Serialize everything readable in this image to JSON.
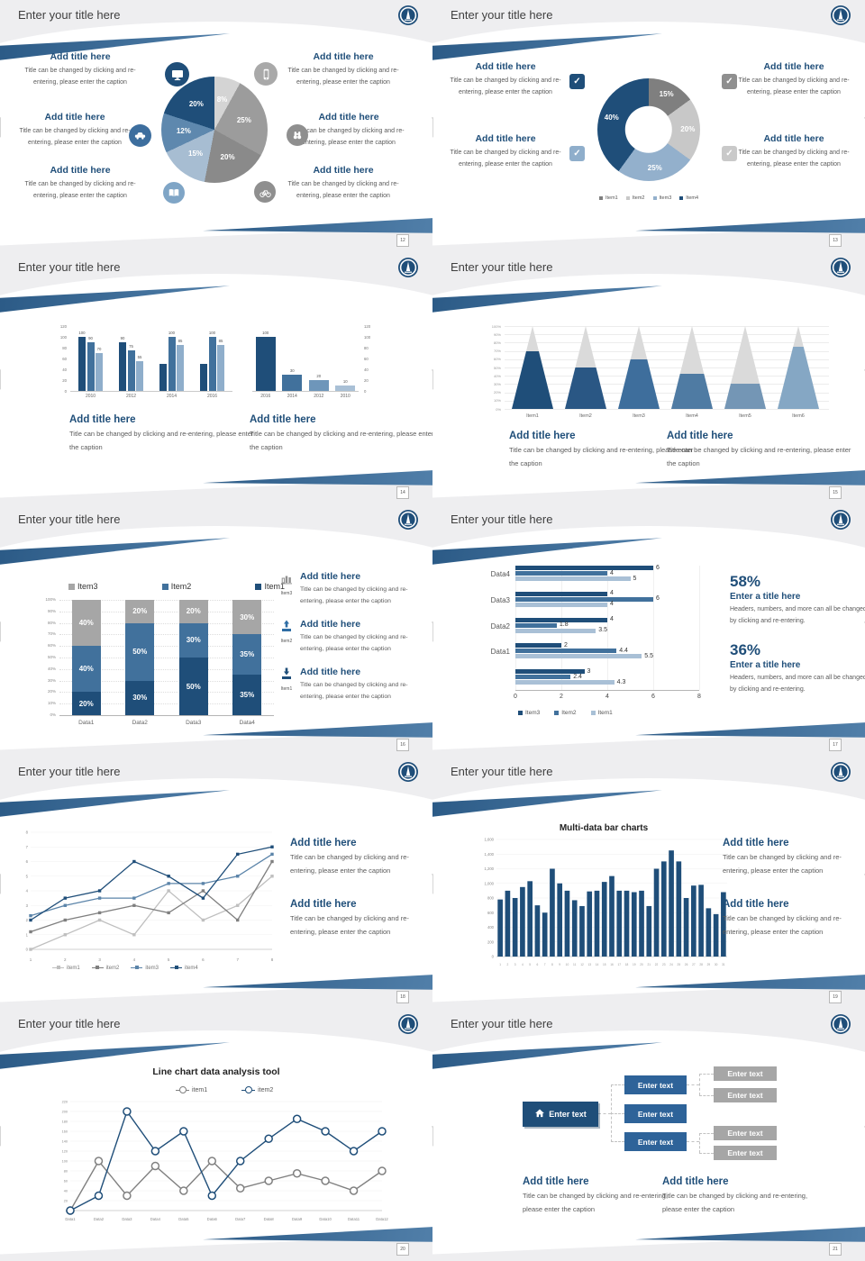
{
  "common": {
    "slide_title": "Enter your title here",
    "add_title": "Add title here",
    "caption": "Title can be changed by clicking and re-entering, please enter the caption",
    "stat_caption": "Headers, numbers, and more can all be changed by clicking and re-entering.",
    "enter_title": "Enter a title here",
    "accent_navy": "#1F4E79",
    "accent_steel": "#41719C"
  },
  "slides": {
    "s12": {
      "page": "12",
      "chart_data": {
        "type": "pie",
        "segments": [
          {
            "v": 8,
            "c": "#D4D4D4"
          },
          {
            "v": 25,
            "c": "#9C9C9C"
          },
          {
            "v": 20,
            "c": "#8A8A8A"
          },
          {
            "v": 15,
            "c": "#A7BDD2"
          },
          {
            "v": 12,
            "c": "#5E88AE"
          },
          {
            "v": 20,
            "c": "#1F4E79"
          }
        ]
      }
    },
    "s13": {
      "page": "13",
      "chart_data": {
        "type": "pie",
        "donut": true,
        "segments": [
          {
            "v": 15,
            "c": "#7F7F7F"
          },
          {
            "v": 20,
            "c": "#C8C8C8"
          },
          {
            "v": 25,
            "c": "#93B0CC"
          },
          {
            "v": 40,
            "c": "#1F4E79"
          }
        ],
        "legend": [
          {
            "label": "Item1",
            "c": "#7F7F7F"
          },
          {
            "label": "Item2",
            "c": "#C8C8C8"
          },
          {
            "label": "Item3",
            "c": "#93B0CC"
          },
          {
            "label": "Item4",
            "c": "#1F4E79"
          }
        ]
      }
    },
    "s14": {
      "page": "14",
      "left_chart": {
        "type": "bar",
        "categories": [
          "2010",
          "2012",
          "2014",
          "2016"
        ],
        "groups": [
          [
            100,
            90,
            70
          ],
          [
            90,
            75,
            55
          ],
          [
            50,
            100,
            85
          ],
          [
            50,
            100,
            85
          ]
        ],
        "labels": [
          [
            "100",
            "90",
            "70"
          ],
          [
            "90",
            "75",
            "55"
          ],
          [
            null,
            "100",
            "85"
          ],
          [
            null,
            "100",
            "85"
          ]
        ],
        "colors": [
          "#1F4E79",
          "#41719C",
          "#8FAECB"
        ],
        "yticks": [
          0,
          20,
          40,
          60,
          80,
          100,
          120
        ],
        "ylim": [
          0,
          120
        ]
      },
      "right_chart": {
        "type": "bar",
        "categories": [
          "2016",
          "2014",
          "2012",
          "2010"
        ],
        "groups": [
          [
            100
          ],
          [
            30
          ],
          [
            20
          ],
          [
            10
          ]
        ],
        "labels": [
          [
            "100"
          ],
          [
            "30"
          ],
          [
            "20"
          ],
          [
            "10"
          ]
        ],
        "colors2d": [
          [
            "#1F4E79"
          ],
          [
            "#41719C"
          ],
          [
            "#6E96BA"
          ],
          [
            "#A9C0D6"
          ]
        ],
        "yticks": [
          0,
          20,
          40,
          60,
          80,
          100,
          120
        ],
        "ylim": [
          0,
          120
        ]
      }
    },
    "s15": {
      "page": "15",
      "chart_data": {
        "type": "bar",
        "style": "pyramid",
        "categories": [
          "Item1",
          "Item2",
          "Item3",
          "Item4",
          "Item5",
          "Item6"
        ],
        "values": [
          70,
          50,
          60,
          42,
          30,
          75
        ],
        "colors": [
          "#1F4E79",
          "#2A5784",
          "#3E6E9C",
          "#4F7BA3",
          "#7496B5",
          "#85A7C4"
        ],
        "yticks": [
          "0%",
          "10%",
          "20%",
          "30%",
          "40%",
          "50%",
          "60%",
          "70%",
          "80%",
          "90%",
          "100%"
        ]
      }
    },
    "s16": {
      "page": "16",
      "chart_data": {
        "type": "bar",
        "style": "stacked-100",
        "categories": [
          "Data1",
          "Data2",
          "Data3",
          "Data4"
        ],
        "series": [
          {
            "name": "Item1",
            "c": "#1F4E79",
            "v": [
              20,
              30,
              50,
              35
            ]
          },
          {
            "name": "Item2",
            "c": "#41719C",
            "v": [
              40,
              50,
              30,
              35
            ]
          },
          {
            "name": "Item3",
            "c": "#A6A6A6",
            "v": [
              40,
              20,
              20,
              30
            ]
          }
        ],
        "legend": [
          {
            "label": "Item3",
            "c": "#A6A6A6"
          },
          {
            "label": "Item2",
            "c": "#41719C"
          },
          {
            "label": "Item1",
            "c": "#1F4E79"
          }
        ],
        "yticks": [
          "0%",
          "10%",
          "20%",
          "30%",
          "40%",
          "50%",
          "60%",
          "70%",
          "80%",
          "90%",
          "100%"
        ]
      },
      "items": [
        {
          "label": "Item3",
          "icon": "bar-chart-icon"
        },
        {
          "label": "Item2",
          "icon": "upload-icon"
        },
        {
          "label": "Item1",
          "icon": "download-icon"
        }
      ]
    },
    "s17": {
      "page": "17",
      "chart_data": {
        "type": "bar",
        "style": "horizontal-grouped",
        "groups": [
          {
            "label": "Data4",
            "v": [
              6,
              4,
              5
            ],
            "lab": [
              "6",
              "4",
              "5"
            ]
          },
          {
            "label": "Data3",
            "v": [
              4,
              6,
              4
            ],
            "lab": [
              "4",
              "6",
              "4"
            ]
          },
          {
            "label": "Data2",
            "v": [
              4,
              1.8,
              3.5
            ],
            "lab": [
              "4",
              "1.8",
              "3.5"
            ]
          },
          {
            "label": "Data1",
            "v": [
              2,
              4.4,
              5.5
            ],
            "lab": [
              "2",
              "4.4",
              "5.5"
            ]
          },
          {
            "label": "",
            "v": [
              3,
              2.4,
              4.3
            ],
            "lab": [
              "3",
              "2.4",
              "4.3"
            ]
          }
        ],
        "colors": [
          "#1F4E79",
          "#41719C",
          "#A9C0D6"
        ],
        "xticks": [
          0,
          2,
          4,
          6,
          8
        ],
        "xlim": [
          0,
          8
        ],
        "legend": [
          {
            "label": "Item3",
            "c": "#1F4E79"
          },
          {
            "label": "Item2",
            "c": "#41719C"
          },
          {
            "label": "Item1",
            "c": "#A9C0D6"
          }
        ]
      },
      "stats": [
        {
          "pct": "58%"
        },
        {
          "pct": "36%"
        }
      ]
    },
    "s18": {
      "page": "18",
      "chart_data": {
        "type": "line",
        "x": [
          "1",
          "2",
          "3",
          "4",
          "5",
          "6",
          "7",
          "8"
        ],
        "ylim": [
          0,
          8
        ],
        "series": [
          {
            "name": "item1",
            "c": "#BFBFBF",
            "v": [
              0,
              1,
              2,
              1,
              4,
              2,
              3,
              5
            ]
          },
          {
            "name": "item2",
            "c": "#7F7F7F",
            "v": [
              1.2,
              2,
              2.5,
              3,
              2.5,
              4,
              2,
              6
            ]
          },
          {
            "name": "item3",
            "c": "#5B84A9",
            "v": [
              2.3,
              3,
              3.5,
              3.5,
              4.5,
              4.5,
              5,
              6.5
            ]
          },
          {
            "name": "item4",
            "c": "#1F4E79",
            "v": [
              2,
              3.5,
              4,
              6,
              5,
              3.5,
              6.5,
              7
            ]
          }
        ]
      }
    },
    "s19": {
      "page": "19",
      "chart_title": "Multi-data bar charts",
      "chart_data": {
        "type": "bar",
        "color": "#1F4E79",
        "xlabels": [
          "1",
          "2",
          "3",
          "4",
          "5",
          "6",
          "7",
          "8",
          "9",
          "10",
          "11",
          "12",
          "13",
          "14",
          "15",
          "16",
          "17",
          "18",
          "19",
          "20",
          "21",
          "22",
          "23",
          "24",
          "25",
          "26",
          "27",
          "28",
          "29",
          "30",
          "31"
        ],
        "values": [
          780,
          900,
          800,
          950,
          1030,
          700,
          600,
          1200,
          1000,
          900,
          770,
          690,
          890,
          900,
          1020,
          1100,
          900,
          900,
          880,
          900,
          690,
          1200,
          1300,
          1450,
          1300,
          800,
          970,
          980,
          660,
          580,
          880
        ],
        "ylim": [
          0,
          1600
        ],
        "yticks": [
          "0",
          "200",
          "400",
          "600",
          "800",
          "1,000",
          "1,200",
          "1,400",
          "1,600"
        ]
      }
    },
    "s20": {
      "page": "20",
      "chart_title": "Line chart data analysis tool",
      "chart_data": {
        "type": "line",
        "x": [
          "Data1",
          "Data2",
          "Data3",
          "Data4",
          "Data5",
          "Data6",
          "Data7",
          "Data8",
          "Data9",
          "Data10",
          "Data11",
          "Data12"
        ],
        "ylim": [
          0,
          220
        ],
        "ystep": 20,
        "series": [
          {
            "name": "item1",
            "c": "#808080",
            "v": [
              0,
              100,
              30,
              90,
              40,
              100,
              45,
              60,
              75,
              60,
              40,
              80
            ]
          },
          {
            "name": "item2",
            "c": "#1F4E79",
            "v": [
              0,
              30,
              200,
              120,
              160,
              30,
              100,
              145,
              185,
              160,
              120,
              160
            ]
          }
        ]
      }
    },
    "s21": {
      "page": "21",
      "diagram": {
        "root": "Enter text",
        "mids": [
          "Enter text",
          "Enter text",
          "Enter text"
        ],
        "leaves": [
          "Enter text",
          "Enter text",
          "Enter text",
          "Enter text"
        ]
      }
    }
  }
}
